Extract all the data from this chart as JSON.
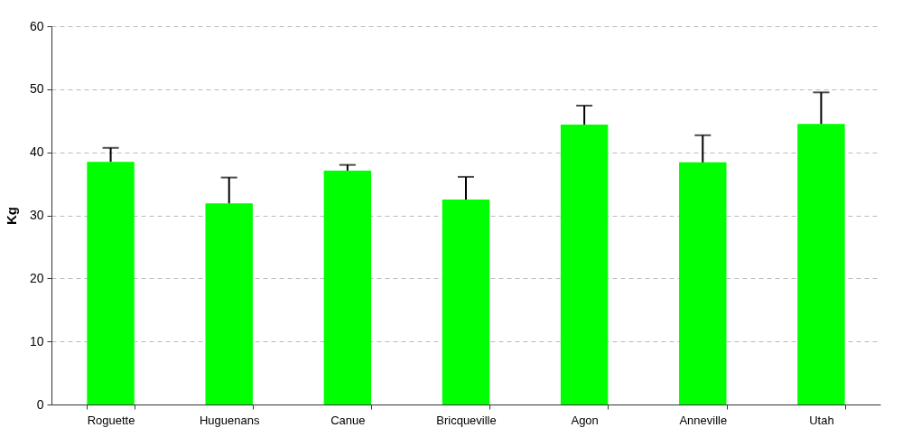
{
  "chart_data": {
    "type": "bar",
    "ylabel": "Kg",
    "categories": [
      "Roguette",
      "Huguenans",
      "Canue",
      "Bricqueville",
      "Agon",
      "Anneville",
      "Utah"
    ],
    "values": [
      38.5,
      31.9,
      37.1,
      32.5,
      44.4,
      38.4,
      44.5
    ],
    "errors": [
      [
        38.5,
        40.7
      ],
      [
        31.9,
        36.0
      ],
      [
        37.1,
        38.0
      ],
      [
        32.5,
        36.1
      ],
      [
        44.4,
        47.4
      ],
      [
        38.4,
        42.7
      ],
      [
        44.5,
        49.5
      ]
    ],
    "color": "#00ff00",
    "ylim": [
      0,
      60
    ],
    "yticks": [
      0,
      10,
      20,
      30,
      40,
      50,
      60
    ],
    "grid": "y"
  }
}
